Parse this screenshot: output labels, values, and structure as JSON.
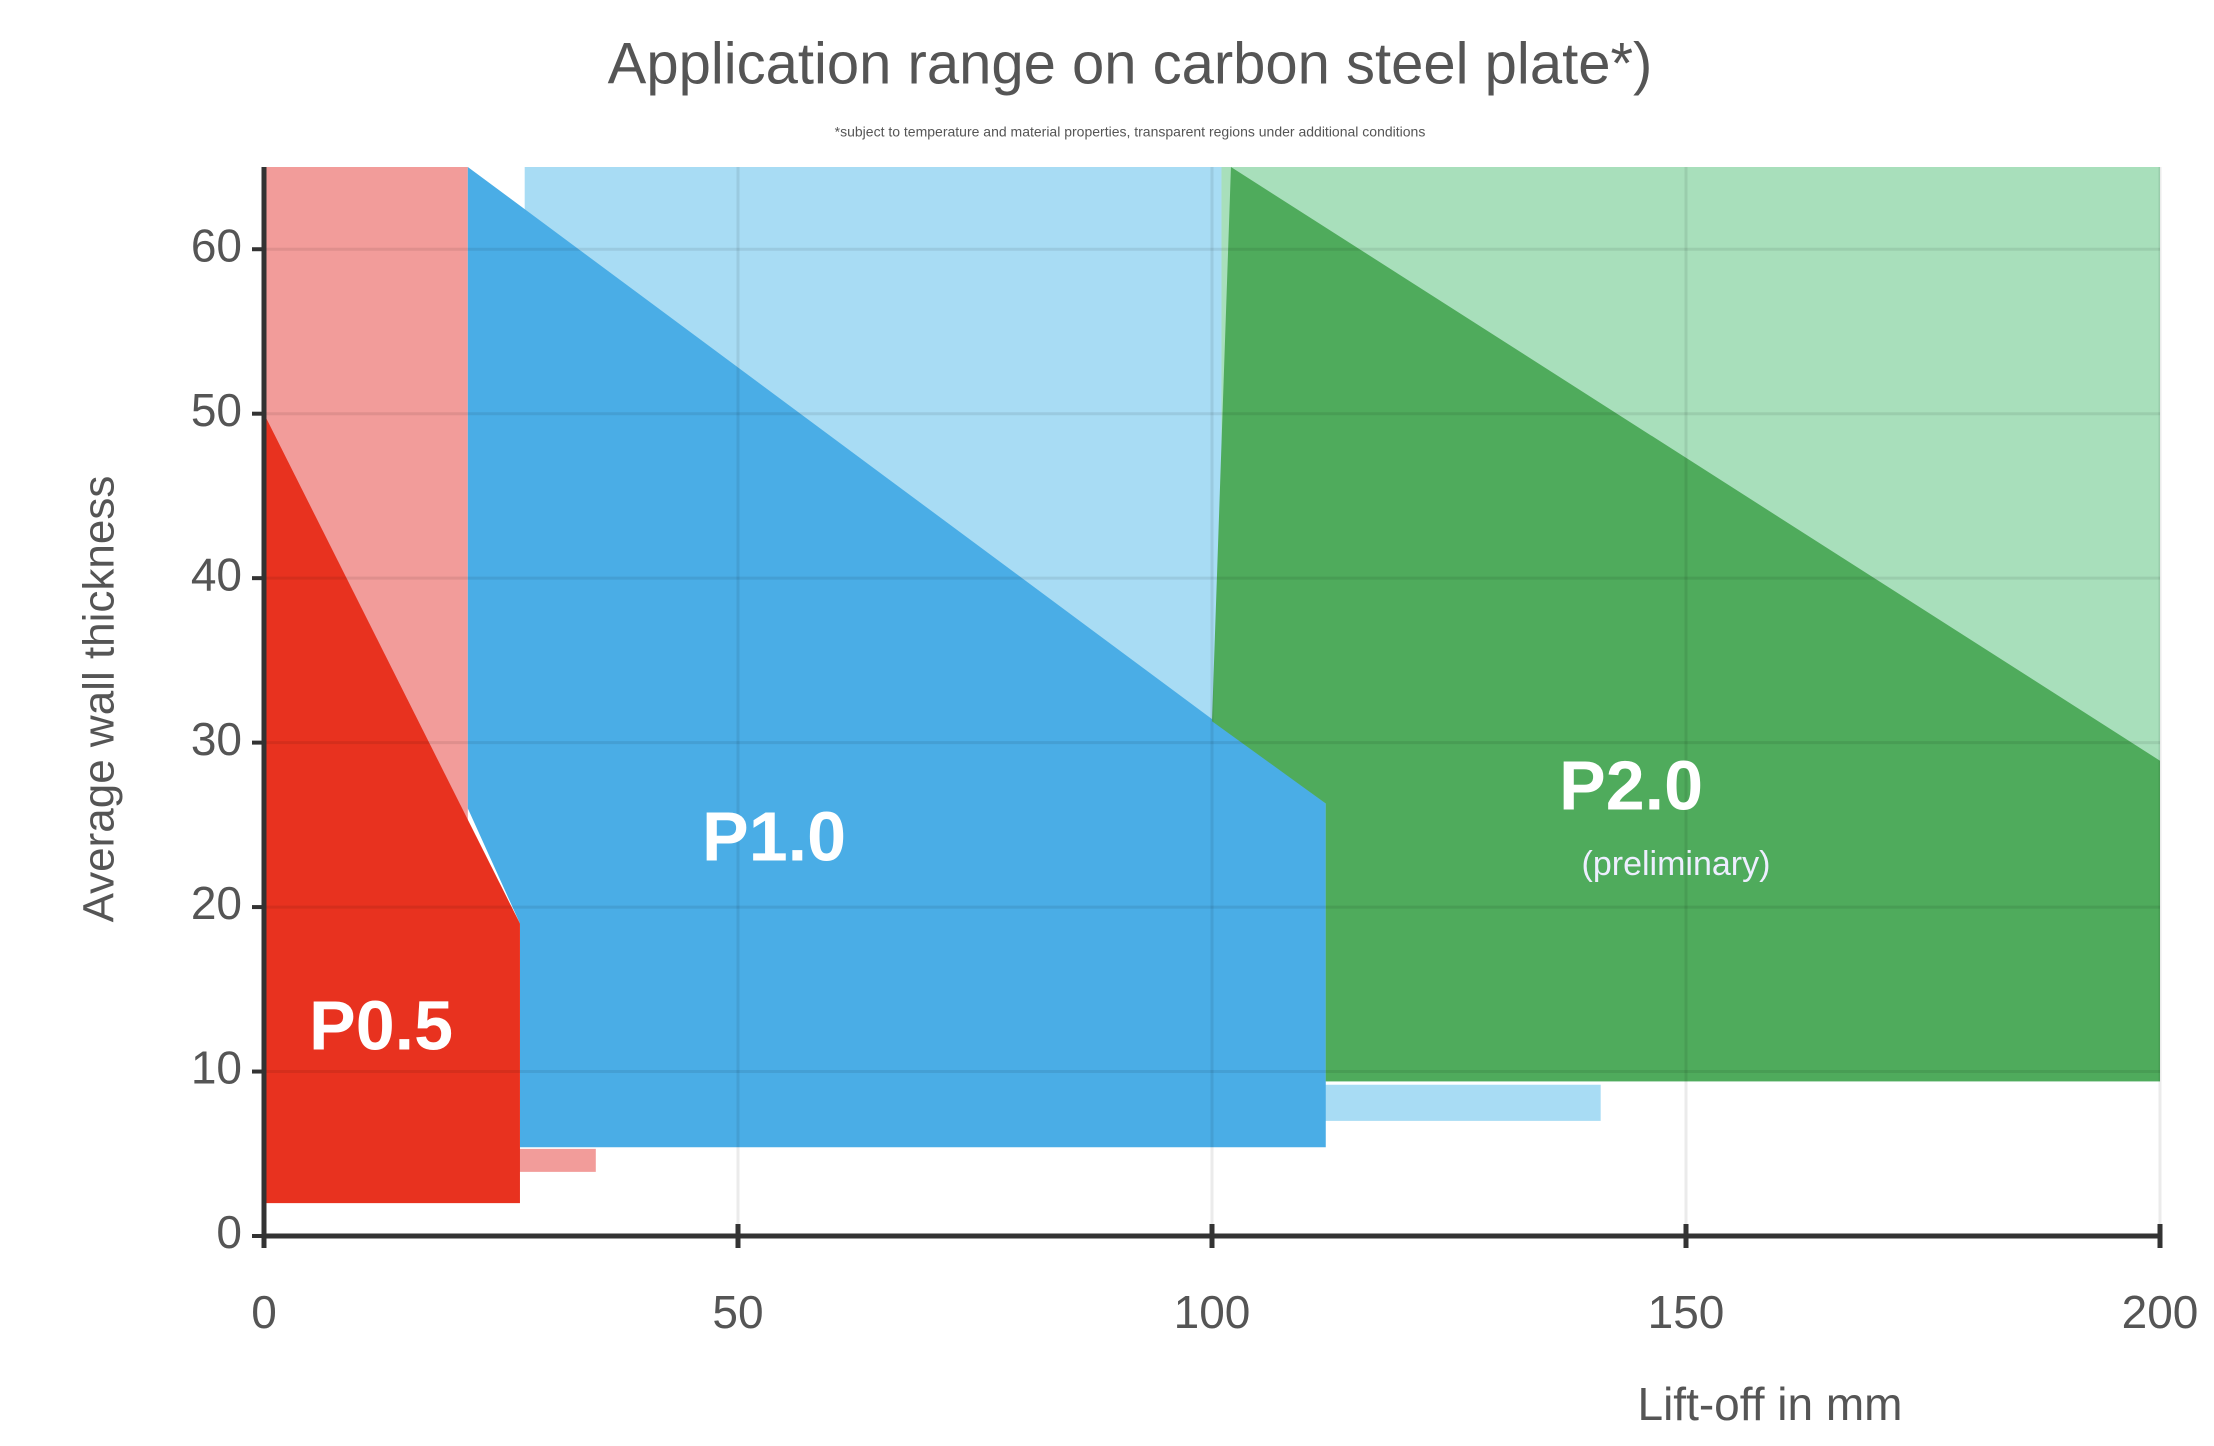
{
  "chart_data": {
    "type": "area",
    "title": "Application range on carbon steel plate*)",
    "subtitle": "*subject to temperature and material properties, transparent regions under additional conditions",
    "x_label": "Lift-off in mm",
    "y_label": "Average wall thickness",
    "xlim": [
      0,
      200
    ],
    "ylim": [
      0,
      65
    ],
    "xticks": [
      0,
      50,
      100,
      150,
      200
    ],
    "yticks": [
      0,
      10,
      20,
      30,
      40,
      50,
      60
    ],
    "grid": true,
    "series": [
      {
        "color": "#f29c9a",
        "x": [
          0,
          21.5,
          21.5,
          35,
          35,
          0
        ],
        "values": [
          65,
          65,
          5.3,
          5.3,
          3.9,
          3.9
        ]
      },
      {
        "color": "#a8dcf4",
        "x": [
          27.5,
          101,
          101,
          141,
          141,
          27.5
        ],
        "values": [
          65,
          65,
          9.2,
          9.2,
          7,
          7
        ]
      },
      {
        "color": "#a8dfbb",
        "x": [
          101,
          200,
          200,
          101
        ],
        "values": [
          65,
          65,
          9.4,
          9.4
        ]
      },
      {
        "name": "P1.0",
        "color": "#4aade6",
        "x": [
          21.5,
          112,
          112,
          27,
          27,
          21.5
        ],
        "values": [
          65,
          26.3,
          5.4,
          5.4,
          19,
          26
        ]
      },
      {
        "name": "P2.0",
        "annotation": "(preliminary)",
        "color": "#4fab5c",
        "x": [
          102,
          200,
          200,
          112,
          112,
          100
        ],
        "values": [
          65,
          28.9,
          9.4,
          9.4,
          26.3,
          31.3
        ]
      },
      {
        "name": "P0.5",
        "color": "#e8321f",
        "x": [
          0,
          27,
          27,
          0
        ],
        "values": [
          50,
          19,
          2,
          2
        ]
      }
    ]
  }
}
